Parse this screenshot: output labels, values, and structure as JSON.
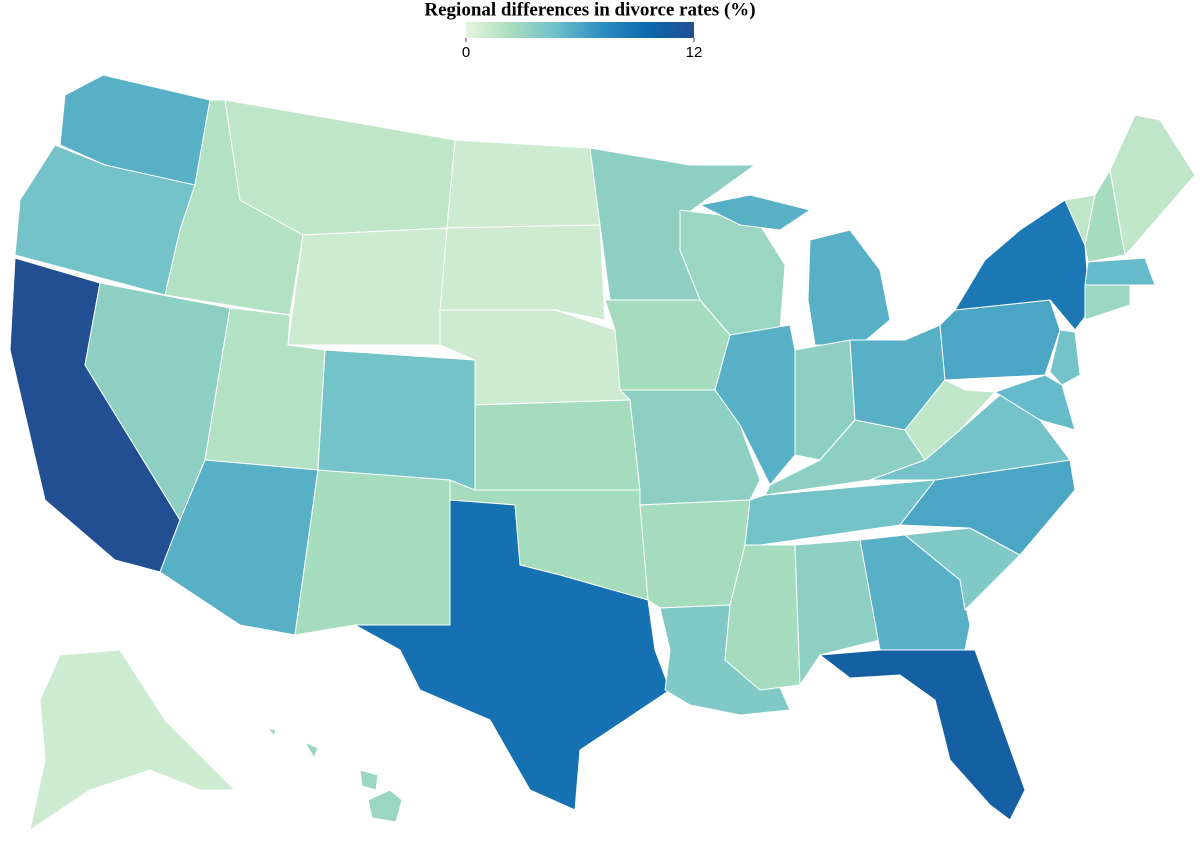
{
  "chart_data": {
    "type": "choropleth",
    "title": "Regional differences in divorce rates (%)",
    "values": [
      5.5,
      4.5,
      12,
      3.5,
      2,
      1.5,
      1,
      2,
      4.5,
      5.5,
      2.5,
      1,
      1,
      1,
      2.5,
      2.5,
      9,
      3.5,
      2.5,
      3.5,
      2.5,
      4,
      3,
      5.5,
      5.5,
      3.5,
      5.5,
      3.5,
      4.5,
      2.5,
      3.5,
      5.5,
      10.5,
      4,
      6,
      4.5,
      1.5,
      6,
      8.5,
      4.5,
      5,
      1.5,
      2.5,
      1.5,
      5,
      3,
      1,
      3
    ],
    "colors": [
      "#e5f5df",
      "#a9ddbd",
      "#6bbfcb",
      "#2b8cbe",
      "#0d68ad",
      "#224f91"
    ],
    "zlim": [
      0,
      12
    ],
    "zticks": [
      0,
      12
    ]
  }
}
